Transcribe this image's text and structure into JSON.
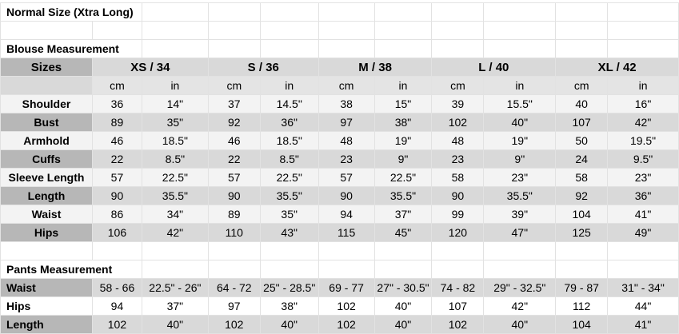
{
  "title": "Normal Size (Xtra Long)",
  "blouse": {
    "title": "Blouse Measurement",
    "sizes_label": "Sizes",
    "sizes": [
      "XS / 34",
      "S / 36",
      "M / 38",
      "L / 40",
      "XL / 42"
    ],
    "units": [
      "cm",
      "in",
      "cm",
      "in",
      "cm",
      "in",
      "cm",
      "in",
      "cm",
      "in"
    ],
    "rows": [
      {
        "label": "Shoulder",
        "values": [
          "36",
          "14\"",
          "37",
          "14.5\"",
          "38",
          "15\"",
          "39",
          "15.5\"",
          "40",
          "16\""
        ]
      },
      {
        "label": "Bust",
        "values": [
          "89",
          "35\"",
          "92",
          "36\"",
          "97",
          "38\"",
          "102",
          "40\"",
          "107",
          "42\""
        ]
      },
      {
        "label": "Armhold",
        "values": [
          "46",
          "18.5\"",
          "46",
          "18.5\"",
          "48",
          "19\"",
          "48",
          "19\"",
          "50",
          "19.5\""
        ]
      },
      {
        "label": "Cuffs",
        "values": [
          "22",
          "8.5\"",
          "22",
          "8.5\"",
          "23",
          "9\"",
          "23",
          "9\"",
          "24",
          "9.5\""
        ]
      },
      {
        "label": "Sleeve Length",
        "values": [
          "57",
          "22.5\"",
          "57",
          "22.5\"",
          "57",
          "22.5\"",
          "58",
          "23\"",
          "58",
          "23\""
        ]
      },
      {
        "label": "Length",
        "values": [
          "90",
          "35.5\"",
          "90",
          "35.5\"",
          "90",
          "35.5\"",
          "90",
          "35.5\"",
          "92",
          "36\""
        ]
      },
      {
        "label": "Waist",
        "values": [
          "86",
          "34\"",
          "89",
          "35\"",
          "94",
          "37\"",
          "99",
          "39\"",
          "104",
          "41\""
        ]
      },
      {
        "label": "Hips",
        "values": [
          "106",
          "42\"",
          "110",
          "43\"",
          "115",
          "45\"",
          "120",
          "47\"",
          "125",
          "49\""
        ]
      }
    ]
  },
  "pants": {
    "title": "Pants Measurement",
    "rows": [
      {
        "label": "Waist",
        "values": [
          "58 - 66",
          "22.5\" - 26\"",
          "64 - 72",
          "25\" - 28.5\"",
          "69 - 77",
          "27\" - 30.5\"",
          "74 - 82",
          "29\" - 32.5\"",
          "79 - 87",
          "31\" - 34\""
        ]
      },
      {
        "label": "Hips",
        "values": [
          "94",
          "37\"",
          "97",
          "38\"",
          "102",
          "40\"",
          "107",
          "42\"",
          "112",
          "44\""
        ]
      },
      {
        "label": "Length",
        "values": [
          "102",
          "40\"",
          "102",
          "40\"",
          "102",
          "40\"",
          "102",
          "40\"",
          "104",
          "41\""
        ]
      }
    ]
  }
}
